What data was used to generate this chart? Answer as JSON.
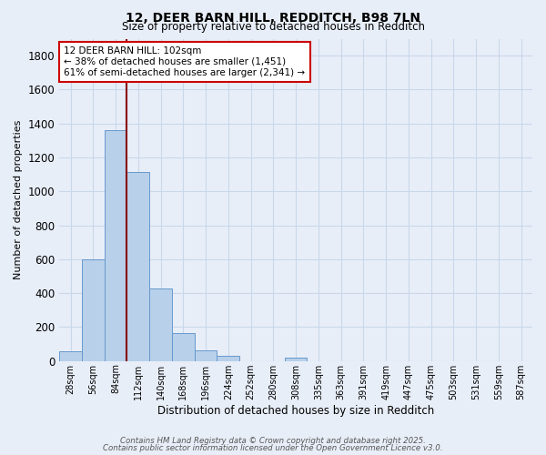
{
  "title1": "12, DEER BARN HILL, REDDITCH, B98 7LN",
  "title2": "Size of property relative to detached houses in Redditch",
  "xlabel": "Distribution of detached houses by size in Redditch",
  "ylabel": "Number of detached properties",
  "categories": [
    "28sqm",
    "56sqm",
    "84sqm",
    "112sqm",
    "140sqm",
    "168sqm",
    "196sqm",
    "224sqm",
    "252sqm",
    "280sqm",
    "308sqm",
    "335sqm",
    "363sqm",
    "391sqm",
    "419sqm",
    "447sqm",
    "475sqm",
    "503sqm",
    "531sqm",
    "559sqm",
    "587sqm"
  ],
  "values": [
    55,
    600,
    1360,
    1115,
    425,
    165,
    65,
    30,
    0,
    0,
    20,
    0,
    0,
    0,
    0,
    0,
    0,
    0,
    0,
    0,
    0
  ],
  "bar_color": "#b8d0ea",
  "bar_edge_color": "#6699cc",
  "grid_color": "#c8d8ea",
  "background_color": "#e8eef8",
  "vline_color": "#880000",
  "vline_x_index": 2.5,
  "annotation_text": "12 DEER BARN HILL: 102sqm\n← 38% of detached houses are smaller (1,451)\n61% of semi-detached houses are larger (2,341) →",
  "annotation_box_facecolor": "#ffffff",
  "annotation_box_edgecolor": "#cc0000",
  "ylim": [
    0,
    1900
  ],
  "yticks": [
    0,
    200,
    400,
    600,
    800,
    1000,
    1200,
    1400,
    1600,
    1800
  ],
  "footer1": "Contains HM Land Registry data © Crown copyright and database right 2025.",
  "footer2": "Contains public sector information licensed under the Open Government Licence v3.0."
}
